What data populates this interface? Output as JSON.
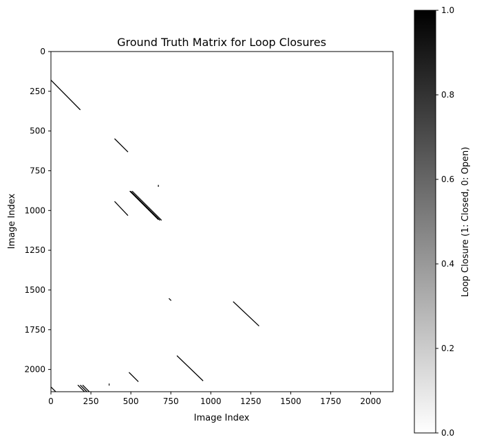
{
  "chart_data": [
    {
      "type": "heatmap",
      "title": "Ground Truth Matrix for Loop Closures",
      "xlabel": "Image Index",
      "ylabel": "Image Index",
      "xlim": [
        0,
        2140
      ],
      "ylim": [
        2140,
        0
      ],
      "x_ticks": [
        0,
        250,
        500,
        750,
        1000,
        1250,
        1500,
        1750,
        2000
      ],
      "y_ticks": [
        0,
        250,
        500,
        750,
        1000,
        1250,
        1500,
        1750,
        2000
      ],
      "grid": false,
      "colormap": "binary",
      "value_colors": {
        "0": "#ffffff",
        "1": "#000000"
      },
      "segments": [
        {
          "x": [
            0,
            182
          ],
          "y": [
            180,
            365
          ]
        },
        {
          "x": [
            400,
            480
          ],
          "y": [
            550,
            630
          ]
        },
        {
          "x": [
            495,
            670
          ],
          "y": [
            880,
            1055
          ]
        },
        {
          "x": [
            500,
            680
          ],
          "y": [
            880,
            1060
          ]
        },
        {
          "x": [
            510,
            690
          ],
          "y": [
            880,
            1060
          ]
        },
        {
          "x": [
            400,
            480
          ],
          "y": [
            945,
            1030
          ]
        },
        {
          "x": [
            1142,
            1300
          ],
          "y": [
            1575,
            1725
          ]
        },
        {
          "x": [
            790,
            950
          ],
          "y": [
            1915,
            2070
          ]
        },
        {
          "x": [
            490,
            545
          ],
          "y": [
            2020,
            2075
          ]
        },
        {
          "x": [
            740,
            750
          ],
          "y": [
            1555,
            1565
          ]
        },
        {
          "x": [
            0,
            30
          ],
          "y": [
            2110,
            2140
          ]
        },
        {
          "x": [
            170,
            210
          ],
          "y": [
            2100,
            2140
          ]
        },
        {
          "x": [
            185,
            225
          ],
          "y": [
            2100,
            2140
          ]
        },
        {
          "x": [
            200,
            240
          ],
          "y": [
            2100,
            2140
          ]
        }
      ],
      "points": [
        {
          "x": 672,
          "y": 845
        },
        {
          "x": 364,
          "y": 2095
        }
      ]
    },
    {
      "type": "colorbar",
      "label": "Loop Closure (1: Closed, 0: Open)",
      "range": [
        0.0,
        1.0
      ],
      "ticks": [
        "0.0",
        "0.2",
        "0.4",
        "0.6",
        "0.8",
        "1.0"
      ],
      "tick_values": [
        0,
        0.2,
        0.4,
        0.6,
        0.8,
        1.0
      ],
      "gradient": [
        "#ffffff",
        "#000000"
      ]
    }
  ]
}
